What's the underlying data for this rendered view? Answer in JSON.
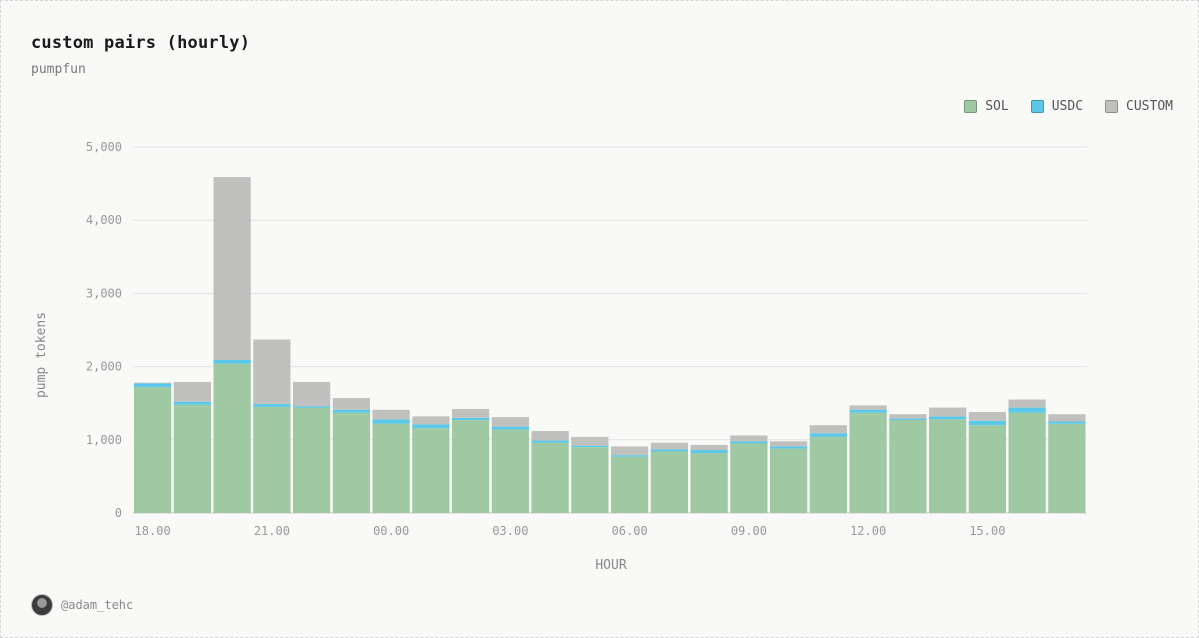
{
  "header": {
    "title": "custom pairs (hourly)",
    "subtitle": "pumpfun"
  },
  "footer": {
    "handle": "@adam_tehc"
  },
  "colors": {
    "sol": "#9fc9a2",
    "usdc": "#5bc8e9",
    "custom": "#c0c1bf"
  },
  "chart_data": {
    "type": "bar",
    "stacked": true,
    "xlabel": "HOUR",
    "ylabel": "pump tokens",
    "ylim": [
      0,
      5000
    ],
    "yticks": [
      0,
      1000,
      2000,
      3000,
      4000,
      5000
    ],
    "ytick_labels": [
      "0",
      "1,000",
      "2,000",
      "3,000",
      "4,000",
      "5,000"
    ],
    "grid": true,
    "legend_position": "top-right",
    "categories": [
      "18.00",
      "19.00",
      "20.00",
      "21.00",
      "22.00",
      "23.00",
      "00.00",
      "01.00",
      "02.00",
      "03.00",
      "04.00",
      "05.00",
      "06.00",
      "07.00",
      "08.00",
      "09.00",
      "10.00",
      "11.00",
      "12.00",
      "13.00",
      "14.00",
      "15.00",
      "16.00",
      "17.00"
    ],
    "xtick_labels": [
      "18.00",
      "",
      "",
      "21.00",
      "",
      "",
      "00.00",
      "",
      "",
      "03.00",
      "",
      "",
      "06.00",
      "",
      "",
      "09.00",
      "",
      "",
      "12.00",
      "",
      "",
      "15.00",
      "",
      ""
    ],
    "series": [
      {
        "name": "SOL",
        "key": "sol",
        "values": [
          1720,
          1480,
          2040,
          1450,
          1440,
          1370,
          1220,
          1160,
          1270,
          1140,
          960,
          900,
          770,
          840,
          820,
          950,
          880,
          1040,
          1370,
          1270,
          1280,
          1200,
          1370,
          1220
        ]
      },
      {
        "name": "USDC",
        "key": "usdc",
        "values": [
          50,
          40,
          50,
          40,
          20,
          40,
          60,
          50,
          30,
          40,
          30,
          20,
          20,
          30,
          40,
          30,
          30,
          50,
          40,
          20,
          40,
          60,
          70,
          30
        ]
      },
      {
        "name": "CUSTOM",
        "key": "custom",
        "values": [
          10,
          270,
          2500,
          880,
          330,
          160,
          130,
          110,
          120,
          130,
          130,
          120,
          120,
          90,
          70,
          80,
          70,
          110,
          60,
          60,
          120,
          120,
          110,
          100
        ]
      }
    ]
  }
}
